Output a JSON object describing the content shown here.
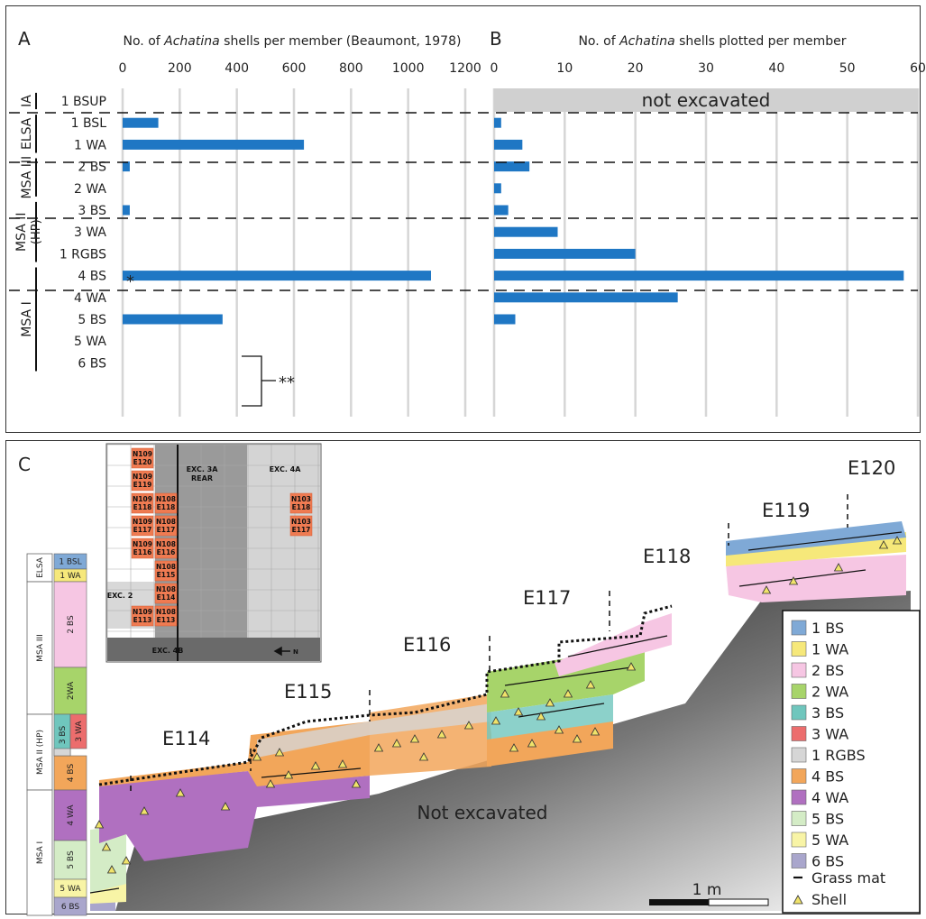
{
  "panel_a": {
    "letter": "A",
    "title_prefix": "No. of ",
    "title_italic": "Achatina",
    "title_suffix": " shells per member (Beaumont, 1978)",
    "rgbs_marker": "*",
    "bracket_marker": "**"
  },
  "panel_b": {
    "letter": "B",
    "title_prefix": "No. of ",
    "title_italic": "Achatina",
    "title_suffix": " shells plotted per member",
    "not_excavated": "not excavated"
  },
  "stratigraphy": {
    "groups": [
      {
        "label": "IA",
        "from": 0,
        "to": 0
      },
      {
        "label": "ELSA",
        "from": 1,
        "to": 2
      },
      {
        "label": "MSA III",
        "from": 3,
        "to": 4
      },
      {
        "label": "MSA II",
        "label2": "(HP)",
        "from": 5,
        "to": 7
      },
      {
        "label": "MSA I",
        "from": 8,
        "to": 12
      }
    ]
  },
  "chart_data": [
    {
      "type": "bar",
      "orientation": "horizontal",
      "title": "No. of Achatina shells per member (Beaumont, 1978)",
      "categories": [
        "1 BSUP",
        "1 BSL",
        "1 WA",
        "2 BS",
        "2 WA",
        "3 BS",
        "3 WA",
        "1 RGBS",
        "4 BS",
        "4 WA",
        "5 BS",
        "5 WA",
        "6 BS"
      ],
      "values": [
        null,
        125,
        635,
        25,
        null,
        25,
        null,
        null,
        1080,
        null,
        350,
        null,
        null
      ],
      "xlim": [
        0,
        1200
      ],
      "xticks": [
        0,
        200,
        400,
        600,
        800,
        1000,
        1200
      ],
      "grid": true,
      "color": "#1f77c4"
    },
    {
      "type": "bar",
      "orientation": "horizontal",
      "title": "No. of Achatina shells plotted per member",
      "categories": [
        "1 BSUP",
        "1 BSL",
        "1 WA",
        "2 BS",
        "2 WA",
        "3 BS",
        "3 WA",
        "1 RGBS",
        "4 BS",
        "4 WA",
        "5 BS",
        "5 WA",
        "6 BS"
      ],
      "values": [
        null,
        1,
        4,
        5,
        1,
        2,
        9,
        20,
        58,
        26,
        3,
        null,
        null
      ],
      "xlim": [
        0,
        60
      ],
      "xticks": [
        0,
        10,
        20,
        30,
        40,
        50,
        60
      ],
      "grid": true,
      "color": "#1f77c4"
    }
  ],
  "panel_c": {
    "letter": "C",
    "not_excavated": "Not excavated",
    "scale_label": "1 m",
    "profile_labels": [
      "E114",
      "E115",
      "E116",
      "E117",
      "E118",
      "E119",
      "E120"
    ],
    "strat_column": [
      {
        "label": "1 BSL",
        "color": "#7fa9d6"
      },
      {
        "label": "1 WA",
        "color": "#f6e87a"
      },
      {
        "label": "2 BS",
        "color": "#f6c6e3"
      },
      {
        "label": "2WA",
        "color": "#a7d46a"
      },
      {
        "label": "3 BS",
        "color": "#6fc6bd"
      },
      {
        "label": "3 WA",
        "color": "#ec6d6d"
      },
      {
        "label": "4 BS",
        "color": "#f2a65a"
      },
      {
        "label": "4 WA",
        "color": "#b070c0"
      },
      {
        "label": "5 BS",
        "color": "#d4ecc6"
      },
      {
        "label": "5 WA",
        "color": "#f8f4a6"
      },
      {
        "label": "6 BS",
        "color": "#a9a6cc"
      }
    ],
    "strat_groups": [
      "ELSA",
      "MSA III",
      "MSA II (HP)",
      "MSA I"
    ],
    "inset": {
      "cells": [
        "N109 E120",
        "N109 E119",
        "N109 E118",
        "N108 E118",
        "N109 E117",
        "N108 E117",
        "N109 E116",
        "N108 E116",
        "N108 E115",
        "N108 E114",
        "N109 E113",
        "N108 E113",
        "N103 E118",
        "N103 E117"
      ],
      "labels": {
        "exc3a": "EXC. 3A REAR",
        "exc4a": "EXC. 4A",
        "exc2": "EXC. 2",
        "exc4b": "EXC. 4B",
        "north": "N"
      }
    },
    "legend": [
      {
        "label": "1 BS",
        "color": "#7fa9d6"
      },
      {
        "label": "1 WA",
        "color": "#f6e87a"
      },
      {
        "label": "2 BS",
        "color": "#f6c6e3"
      },
      {
        "label": "2 WA",
        "color": "#a7d46a"
      },
      {
        "label": "3 BS",
        "color": "#6fc6bd"
      },
      {
        "label": "3 WA",
        "color": "#ec6d6d"
      },
      {
        "label": "1 RGBS",
        "color": "#d6d6d6"
      },
      {
        "label": "4 BS",
        "color": "#f2a65a"
      },
      {
        "label": "4 WA",
        "color": "#b070c0"
      },
      {
        "label": "5 BS",
        "color": "#d4ecc6"
      },
      {
        "label": "5 WA",
        "color": "#f8f4a6"
      },
      {
        "label": "6 BS",
        "color": "#a9a6cc"
      }
    ],
    "legend_grass": "Grass mat",
    "legend_shell": "Shell"
  }
}
